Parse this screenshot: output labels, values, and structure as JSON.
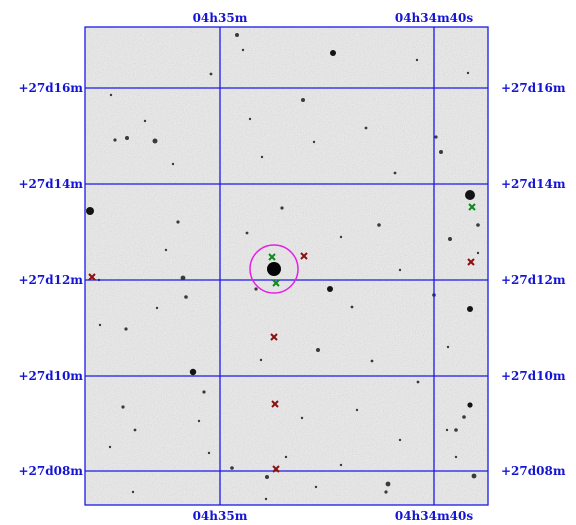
{
  "sky_chart": {
    "ra_labels": [
      "04h35m",
      "04h34m40s"
    ],
    "dec_labels": [
      "+27d16m",
      "+27d14m",
      "+27d12m",
      "+27d10m",
      "+27d08m"
    ],
    "colors": {
      "grid": "#1a1ae6",
      "labels": "#1414d4",
      "target_circle": "#e61ee6",
      "marker_red": "#8b1010",
      "marker_green": "#0f8a1c",
      "image_background": "#ececec"
    }
  }
}
